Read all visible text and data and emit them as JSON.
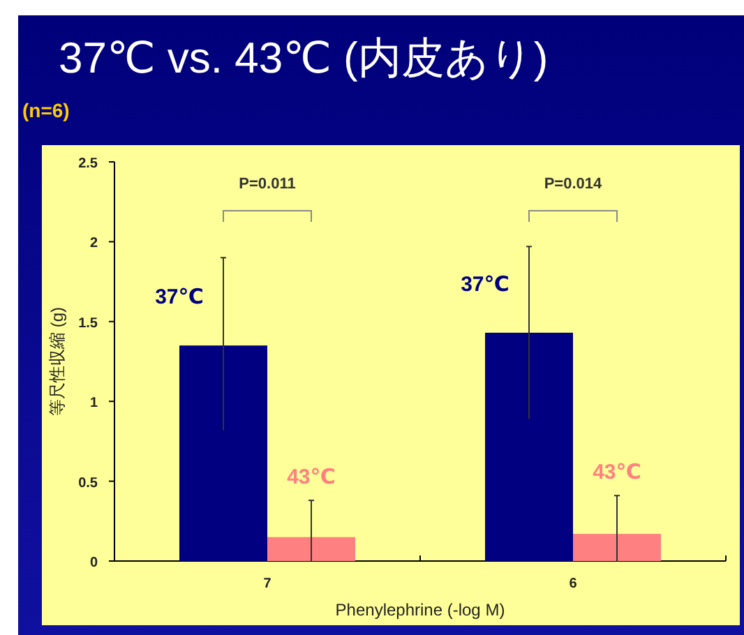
{
  "chart_data": {
    "type": "bar",
    "title": "37℃ vs. 43℃ (内皮あり)",
    "xlabel": "Phenylephrine (-log M)",
    "ylabel": "等尺性収縮 (g)",
    "annotations": [
      "(n=6)",
      "P=0.011",
      "P=0.014"
    ],
    "categories": [
      "7",
      "6"
    ],
    "series": [
      {
        "name": "37℃",
        "color": "#000080",
        "values": [
          1.35,
          1.43
        ],
        "errors": [
          [
            0.82,
            1.9
          ],
          [
            0.89,
            1.97
          ]
        ]
      },
      {
        "name": "43℃",
        "color": "#ff8080",
        "values": [
          0.15,
          0.17
        ],
        "errors": [
          [
            0,
            0.38
          ],
          [
            0,
            0.41
          ]
        ]
      }
    ],
    "ylim": [
      0,
      2.5
    ],
    "yticks": [
      0,
      0.5,
      1,
      1.5,
      2,
      2.5
    ],
    "grid": false,
    "legend": false
  }
}
